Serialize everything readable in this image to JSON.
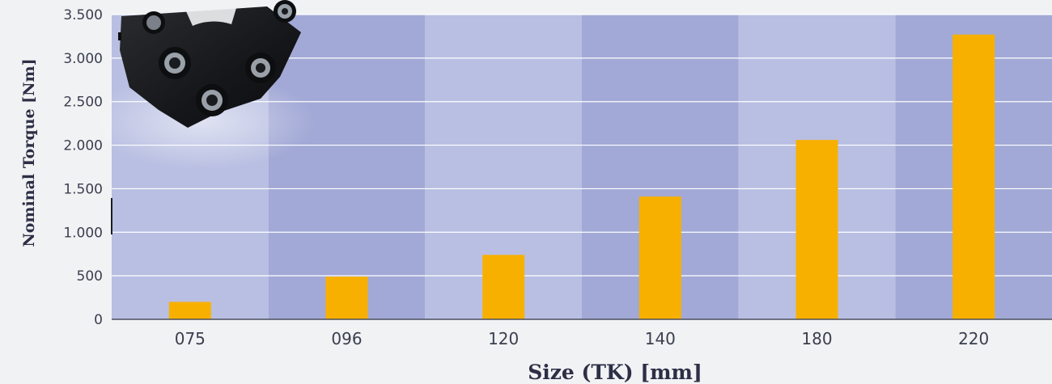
{
  "chart_data": {
    "type": "bar",
    "categories": [
      "075",
      "096",
      "120",
      "140",
      "180",
      "220"
    ],
    "values": [
      200,
      490,
      740,
      1410,
      2060,
      3270
    ],
    "xlabel": "Size (TK) [mm]",
    "ylabel": "Nominal Torque [Nm]",
    "ylim": [
      0,
      3500
    ],
    "yticks": [
      0,
      500,
      1000,
      1500,
      2000,
      2500,
      3000,
      3500
    ],
    "ytick_labels": [
      "0",
      "500",
      "1.000",
      "1.500",
      "2.000",
      "2.500",
      "3.000",
      "3.500"
    ],
    "grid": true,
    "colors": {
      "bar": "#f8b000",
      "band_light": "#b9bfe2",
      "band_dark": "#a2a9d6",
      "gridline": "#ffffff",
      "axis": "#4a4f5e",
      "background": "#f1f2f4",
      "coupling": "#1b1c1f"
    }
  },
  "decoration": {
    "image": "flexible-coupling-product-photo"
  }
}
